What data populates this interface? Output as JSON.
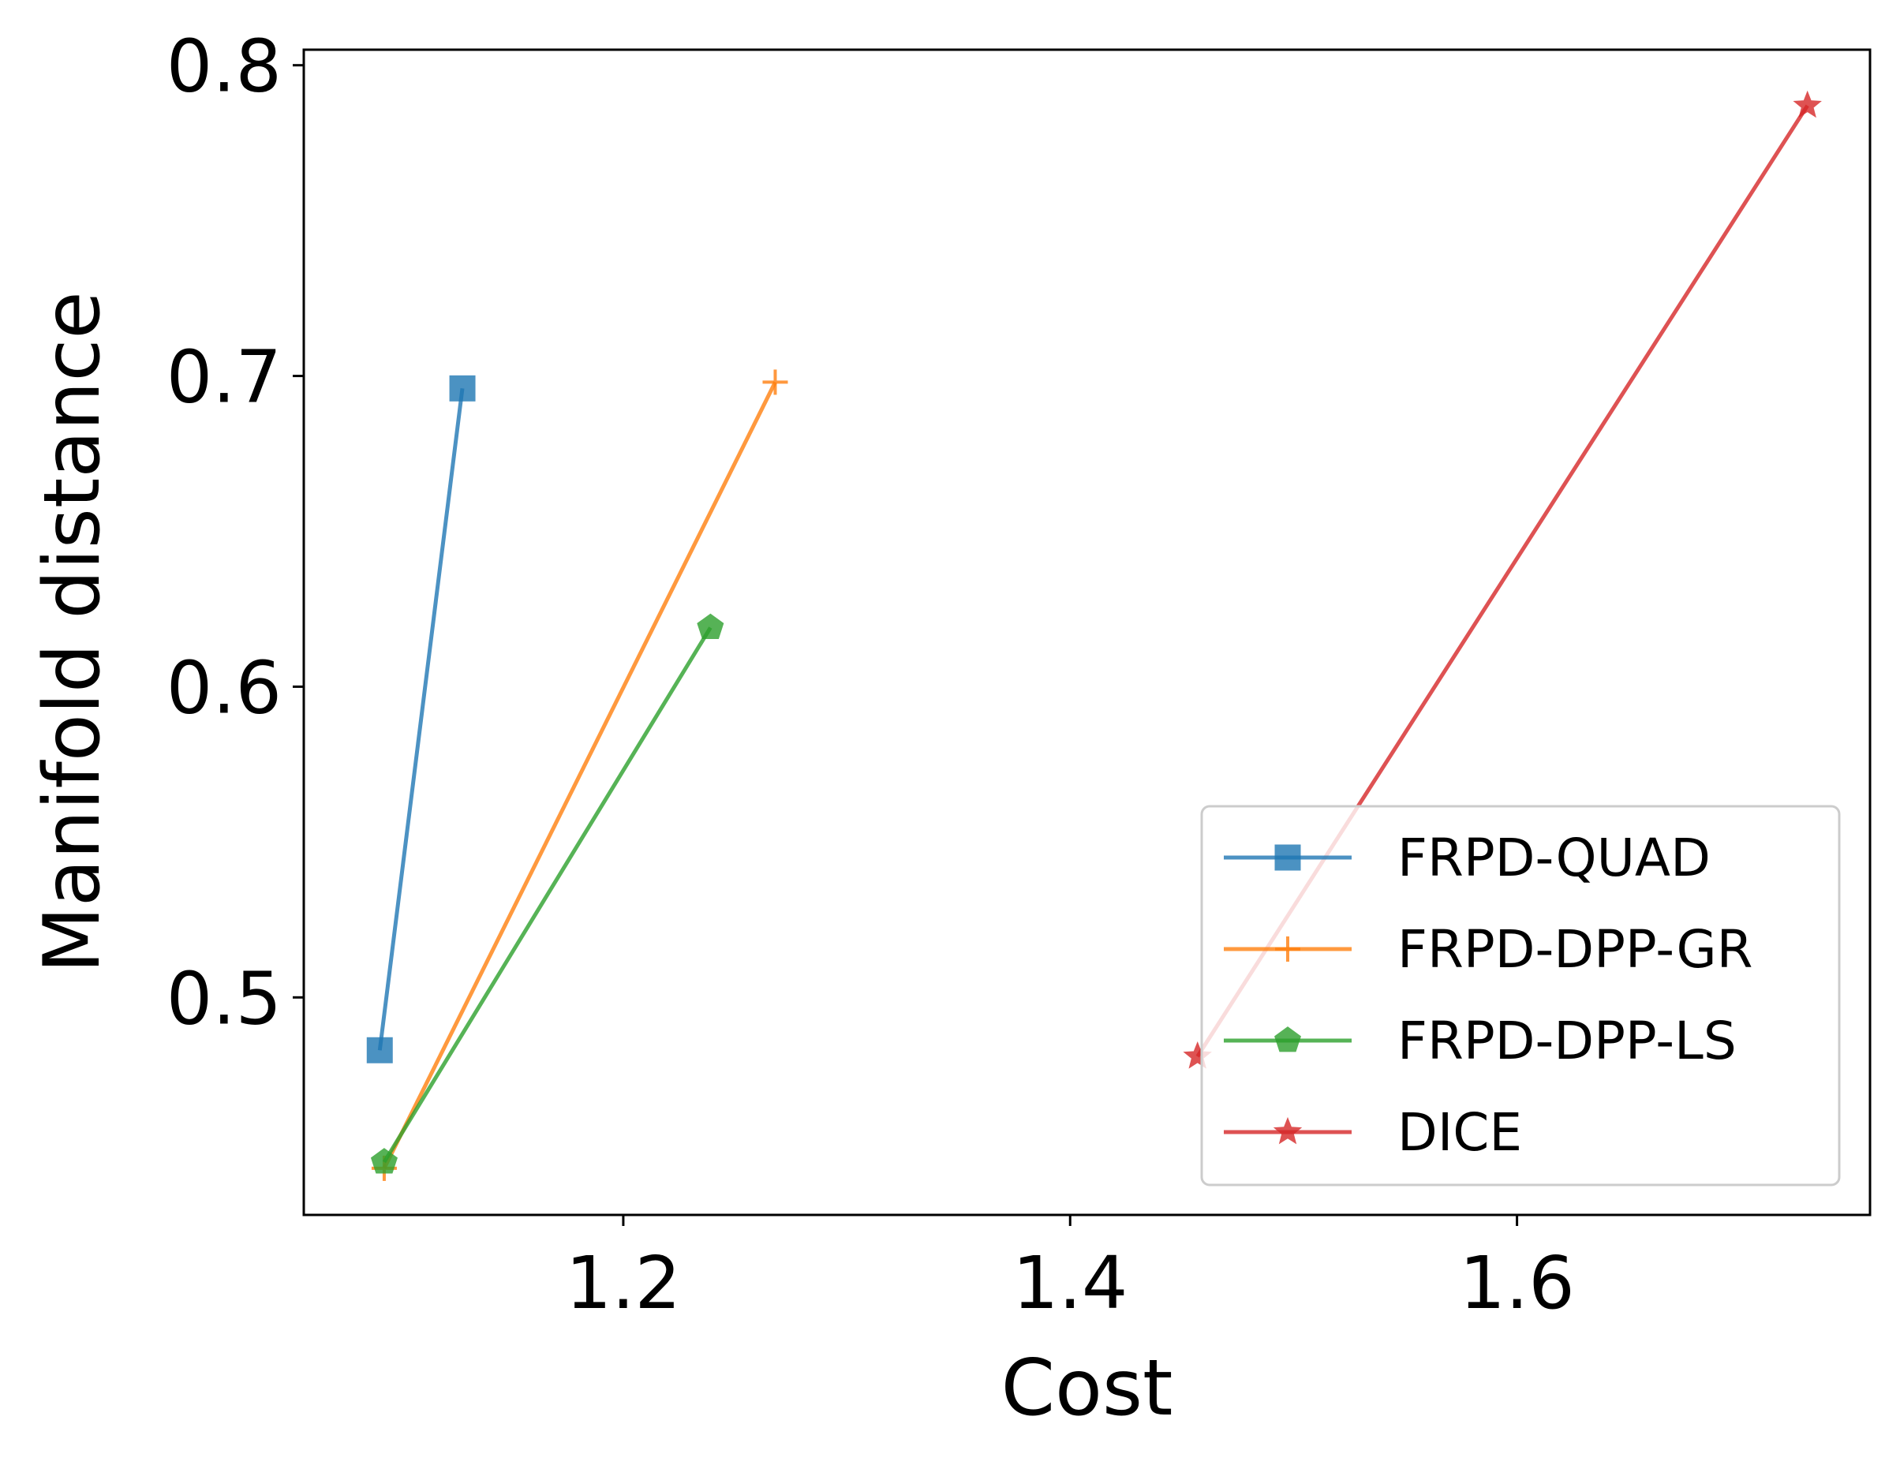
{
  "chart_data": {
    "type": "line",
    "title": "",
    "xlabel": "Cost",
    "ylabel": "Manifold distance",
    "xlim": [
      1.057,
      1.758
    ],
    "ylim": [
      0.43,
      0.805
    ],
    "xticks": [
      1.2,
      1.4,
      1.6
    ],
    "xtick_labels": [
      "1.2",
      "1.4",
      "1.6"
    ],
    "yticks": [
      0.5,
      0.6,
      0.7,
      0.8
    ],
    "ytick_labels": [
      "0.5",
      "0.6",
      "0.7",
      "0.8"
    ],
    "grid": false,
    "legend_position": "lower-right",
    "series": [
      {
        "name": "FRPD-QUAD",
        "color": "#1f77b4",
        "marker": "square",
        "x": [
          1.091,
          1.128
        ],
        "y": [
          0.483,
          0.696
        ]
      },
      {
        "name": "FRPD-DPP-GR",
        "color": "#ff7f0e",
        "marker": "plus",
        "x": [
          1.093,
          1.268
        ],
        "y": [
          0.445,
          0.698
        ]
      },
      {
        "name": "FRPD-DPP-LS",
        "color": "#2ca02c",
        "marker": "pentagon",
        "x": [
          1.093,
          1.239
        ],
        "y": [
          0.447,
          0.619
        ]
      },
      {
        "name": "DICE",
        "color": "#d62728",
        "marker": "star",
        "x": [
          1.457,
          1.73
        ],
        "y": [
          0.481,
          0.787
        ]
      }
    ]
  }
}
